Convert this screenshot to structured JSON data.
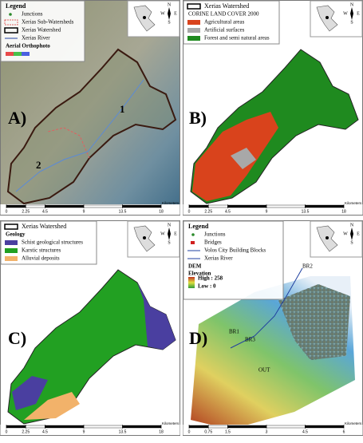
{
  "panels": [
    {
      "label": "A)",
      "legend": {
        "title": "Legend",
        "items": [
          "Junctions",
          "Xerias Sub-Watersheds",
          "Xerias Watershed",
          "Xerias River",
          "Aerial Orthophoto"
        ]
      },
      "map_labels": [
        "1",
        "2"
      ],
      "scale": {
        "ticks": [
          0,
          2.25,
          4.5,
          9,
          13.5,
          18
        ],
        "unit": "Kilometers"
      }
    },
    {
      "label": "B)",
      "legend": {
        "title": "Xerias Watershed",
        "subtitle": "CORINE LAND COVER 2000",
        "items": [
          "Agricultural areas",
          "Artificial surfaces",
          "Forest and semi natural areas"
        ]
      },
      "scale": {
        "ticks": [
          0,
          2.25,
          4.5,
          9,
          13.5,
          18
        ],
        "unit": "Kilometers"
      }
    },
    {
      "label": "C)",
      "legend": {
        "title": "Xerias Watershed",
        "subtitle": "Geology",
        "items": [
          "Schist geological structures",
          "Karstic structures",
          "Alluvial deposits"
        ]
      },
      "scale": {
        "ticks": [
          0,
          2.25,
          4.5,
          9,
          13.5,
          18
        ],
        "unit": "Kilometers"
      }
    },
    {
      "label": "D)",
      "legend": {
        "title": "Legend",
        "items": [
          "Junctions",
          "Bridges",
          "Volos City Building Blocks",
          "Xerias River"
        ],
        "subtitle": "DEM",
        "ramp_title": "Elevation",
        "high": "High : 258",
        "low": "Low : 0"
      },
      "map_labels": [
        "BR2",
        "BR1",
        "BR3",
        "OUT"
      ],
      "scale": {
        "ticks": [
          0,
          0.75,
          1.5,
          3,
          4.5,
          6
        ],
        "unit": "Kilometers"
      }
    }
  ],
  "compass": [
    "N",
    "E",
    "S",
    "W"
  ]
}
